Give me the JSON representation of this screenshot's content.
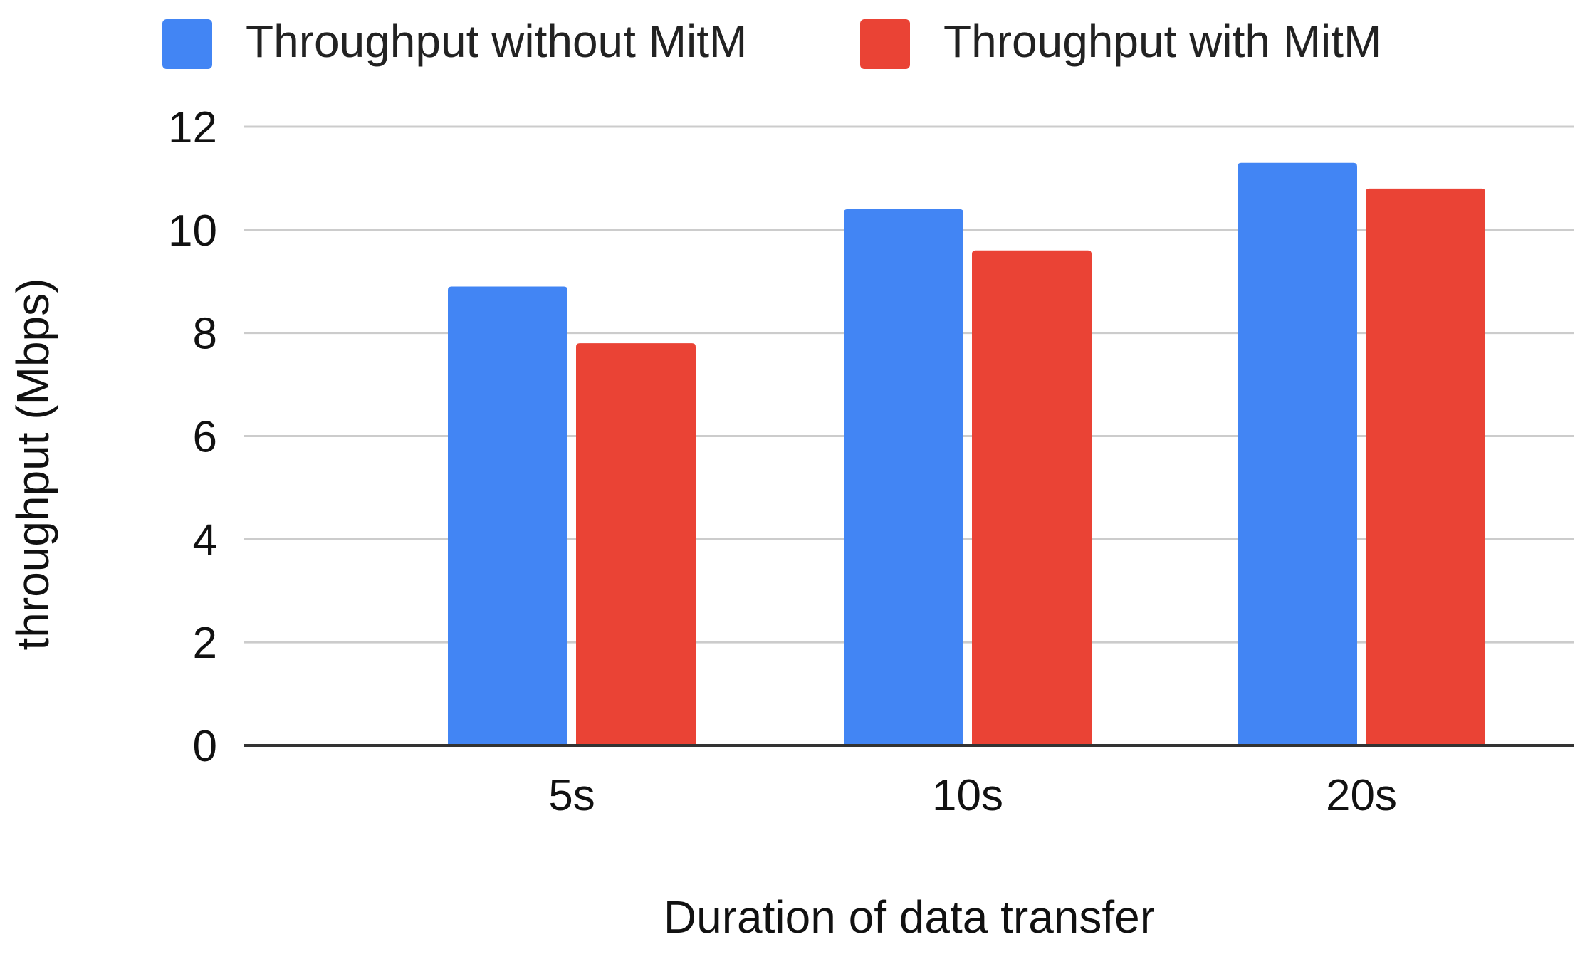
{
  "chart_data": {
    "type": "bar",
    "title": "",
    "categories": [
      "5s",
      "10s",
      "20s"
    ],
    "series": [
      {
        "name": "Throughput without MitM",
        "color": "#4285F4",
        "values": [
          8.9,
          10.4,
          11.3
        ]
      },
      {
        "name": "Throughput with MitM",
        "color": "#EA4335",
        "values": [
          7.8,
          9.6,
          10.8
        ]
      }
    ],
    "xlabel": "Duration of data transfer",
    "ylabel": "throughput (Mbps)",
    "ylim": [
      0,
      12
    ],
    "yticks": [
      "0",
      "2",
      "4",
      "6",
      "8",
      "10",
      "12"
    ],
    "grid": true,
    "legend_position": "top"
  }
}
